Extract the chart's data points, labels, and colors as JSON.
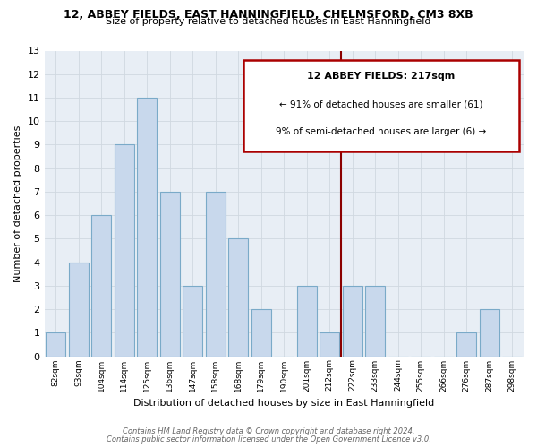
{
  "title_line1": "12, ABBEY FIELDS, EAST HANNINGFIELD, CHELMSFORD, CM3 8XB",
  "title_line2": "Size of property relative to detached houses in East Hanningfield",
  "xlabel": "Distribution of detached houses by size in East Hanningfield",
  "ylabel": "Number of detached properties",
  "bin_labels": [
    "82sqm",
    "93sqm",
    "104sqm",
    "114sqm",
    "125sqm",
    "136sqm",
    "147sqm",
    "158sqm",
    "168sqm",
    "179sqm",
    "190sqm",
    "201sqm",
    "212sqm",
    "222sqm",
    "233sqm",
    "244sqm",
    "255sqm",
    "266sqm",
    "276sqm",
    "287sqm",
    "298sqm"
  ],
  "bar_heights": [
    1,
    4,
    6,
    9,
    11,
    7,
    3,
    7,
    5,
    2,
    0,
    3,
    1,
    3,
    3,
    0,
    0,
    0,
    1,
    2,
    0
  ],
  "bar_color": "#c8d8ec",
  "bar_edge_color": "#7aaac8",
  "grid_color": "#d0d8e0",
  "bg_color": "#e8eef5",
  "fig_bg_color": "#ffffff",
  "annotation_title": "12 ABBEY FIELDS: 217sqm",
  "annotation_line2": "← 91% of detached houses are smaller (61)",
  "annotation_line3": "9% of semi-detached houses are larger (6) →",
  "ylim": [
    0,
    13
  ],
  "yticks": [
    0,
    1,
    2,
    3,
    4,
    5,
    6,
    7,
    8,
    9,
    10,
    11,
    12,
    13
  ],
  "footnote1": "Contains HM Land Registry data © Crown copyright and database right 2024.",
  "footnote2": "Contains public sector information licensed under the Open Government Licence v3.0."
}
